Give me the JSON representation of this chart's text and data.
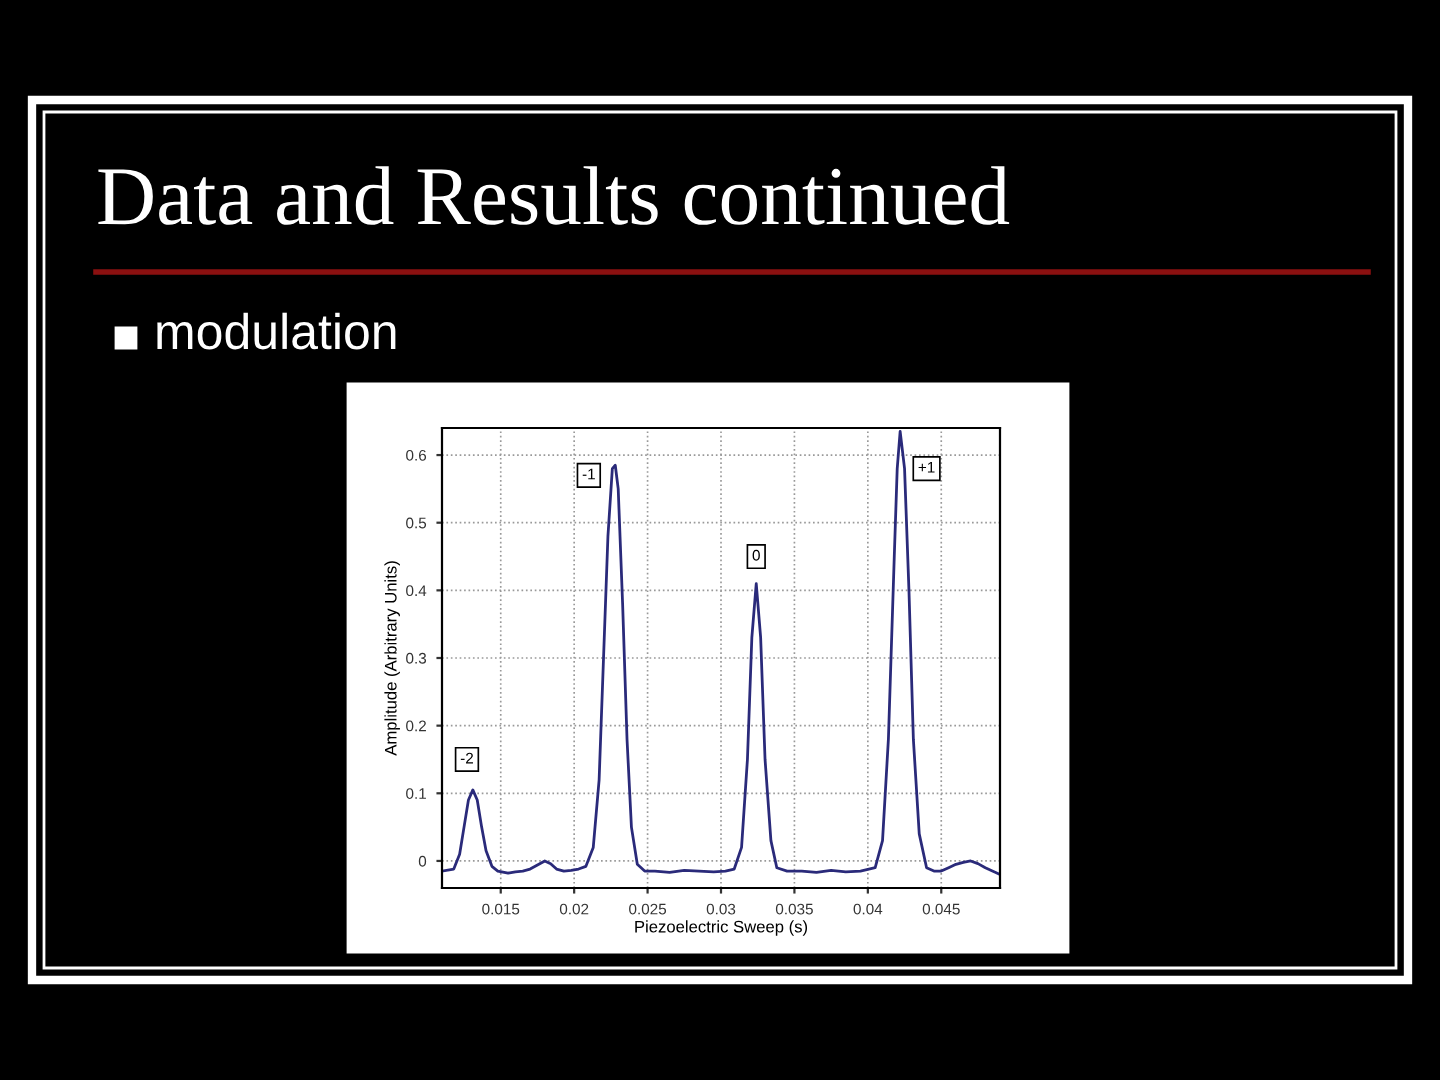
{
  "chart_data": {
    "type": "line",
    "title": "Data and Results continued",
    "subtitle": "modulation",
    "xlabel": "Piezoelectric Sweep (s)",
    "ylabel": "Amplitude (Arbitrary Units)",
    "series": [
      {
        "color": "#2a2a7a",
        "x": [
          0.011,
          0.0118,
          0.0122,
          0.0125,
          0.0128,
          0.0131,
          0.0134,
          0.0137,
          0.014,
          0.0144,
          0.0148,
          0.0155,
          0.016,
          0.0165,
          0.017,
          0.0175,
          0.018,
          0.0184,
          0.0188,
          0.0193,
          0.0198,
          0.0203,
          0.0208,
          0.0213,
          0.0217,
          0.022,
          0.0223,
          0.0226,
          0.0228,
          0.023,
          0.0233,
          0.0236,
          0.0239,
          0.0243,
          0.0248,
          0.0255,
          0.0265,
          0.0275,
          0.0285,
          0.0295,
          0.0303,
          0.0309,
          0.0314,
          0.0318,
          0.0321,
          0.0324,
          0.0327,
          0.033,
          0.0334,
          0.0338,
          0.0345,
          0.0355,
          0.0365,
          0.0375,
          0.0385,
          0.0395,
          0.0405,
          0.041,
          0.0414,
          0.0418,
          0.042,
          0.0422,
          0.0425,
          0.0428,
          0.0431,
          0.0435,
          0.044,
          0.0445,
          0.045,
          0.0455,
          0.046,
          0.0465,
          0.047,
          0.0475,
          0.048,
          0.049
        ],
        "values": [
          -0.015,
          -0.012,
          0.01,
          0.05,
          0.09,
          0.105,
          0.09,
          0.05,
          0.015,
          -0.008,
          -0.015,
          -0.018,
          -0.016,
          -0.015,
          -0.012,
          -0.006,
          0.0,
          -0.004,
          -0.012,
          -0.015,
          -0.014,
          -0.012,
          -0.008,
          0.02,
          0.12,
          0.3,
          0.48,
          0.58,
          0.585,
          0.55,
          0.38,
          0.18,
          0.05,
          -0.005,
          -0.015,
          -0.015,
          -0.017,
          -0.014,
          -0.015,
          -0.016,
          -0.015,
          -0.012,
          0.02,
          0.15,
          0.33,
          0.41,
          0.33,
          0.15,
          0.03,
          -0.01,
          -0.015,
          -0.015,
          -0.017,
          -0.014,
          -0.016,
          -0.015,
          -0.01,
          0.03,
          0.18,
          0.45,
          0.58,
          0.635,
          0.58,
          0.4,
          0.18,
          0.04,
          -0.01,
          -0.015,
          -0.015,
          -0.01,
          -0.005,
          -0.002,
          0.0,
          -0.004,
          -0.01,
          -0.02
        ]
      }
    ],
    "xlim": [
      0.011,
      0.049
    ],
    "ylim": [
      -0.04,
      0.64
    ],
    "xticks": [
      0.015,
      0.02,
      0.025,
      0.03,
      0.035,
      0.04,
      0.045
    ],
    "yticks": [
      0,
      0.1,
      0.2,
      0.3,
      0.4,
      0.5,
      0.6
    ],
    "grid": true,
    "annotations": [
      {
        "text": "-2",
        "x": 0.0127,
        "y": 0.15
      },
      {
        "text": "-1",
        "x": 0.021,
        "y": 0.57
      },
      {
        "text": "0",
        "x": 0.0324,
        "y": 0.45
      },
      {
        "text": "+1",
        "x": 0.044,
        "y": 0.58
      }
    ]
  }
}
